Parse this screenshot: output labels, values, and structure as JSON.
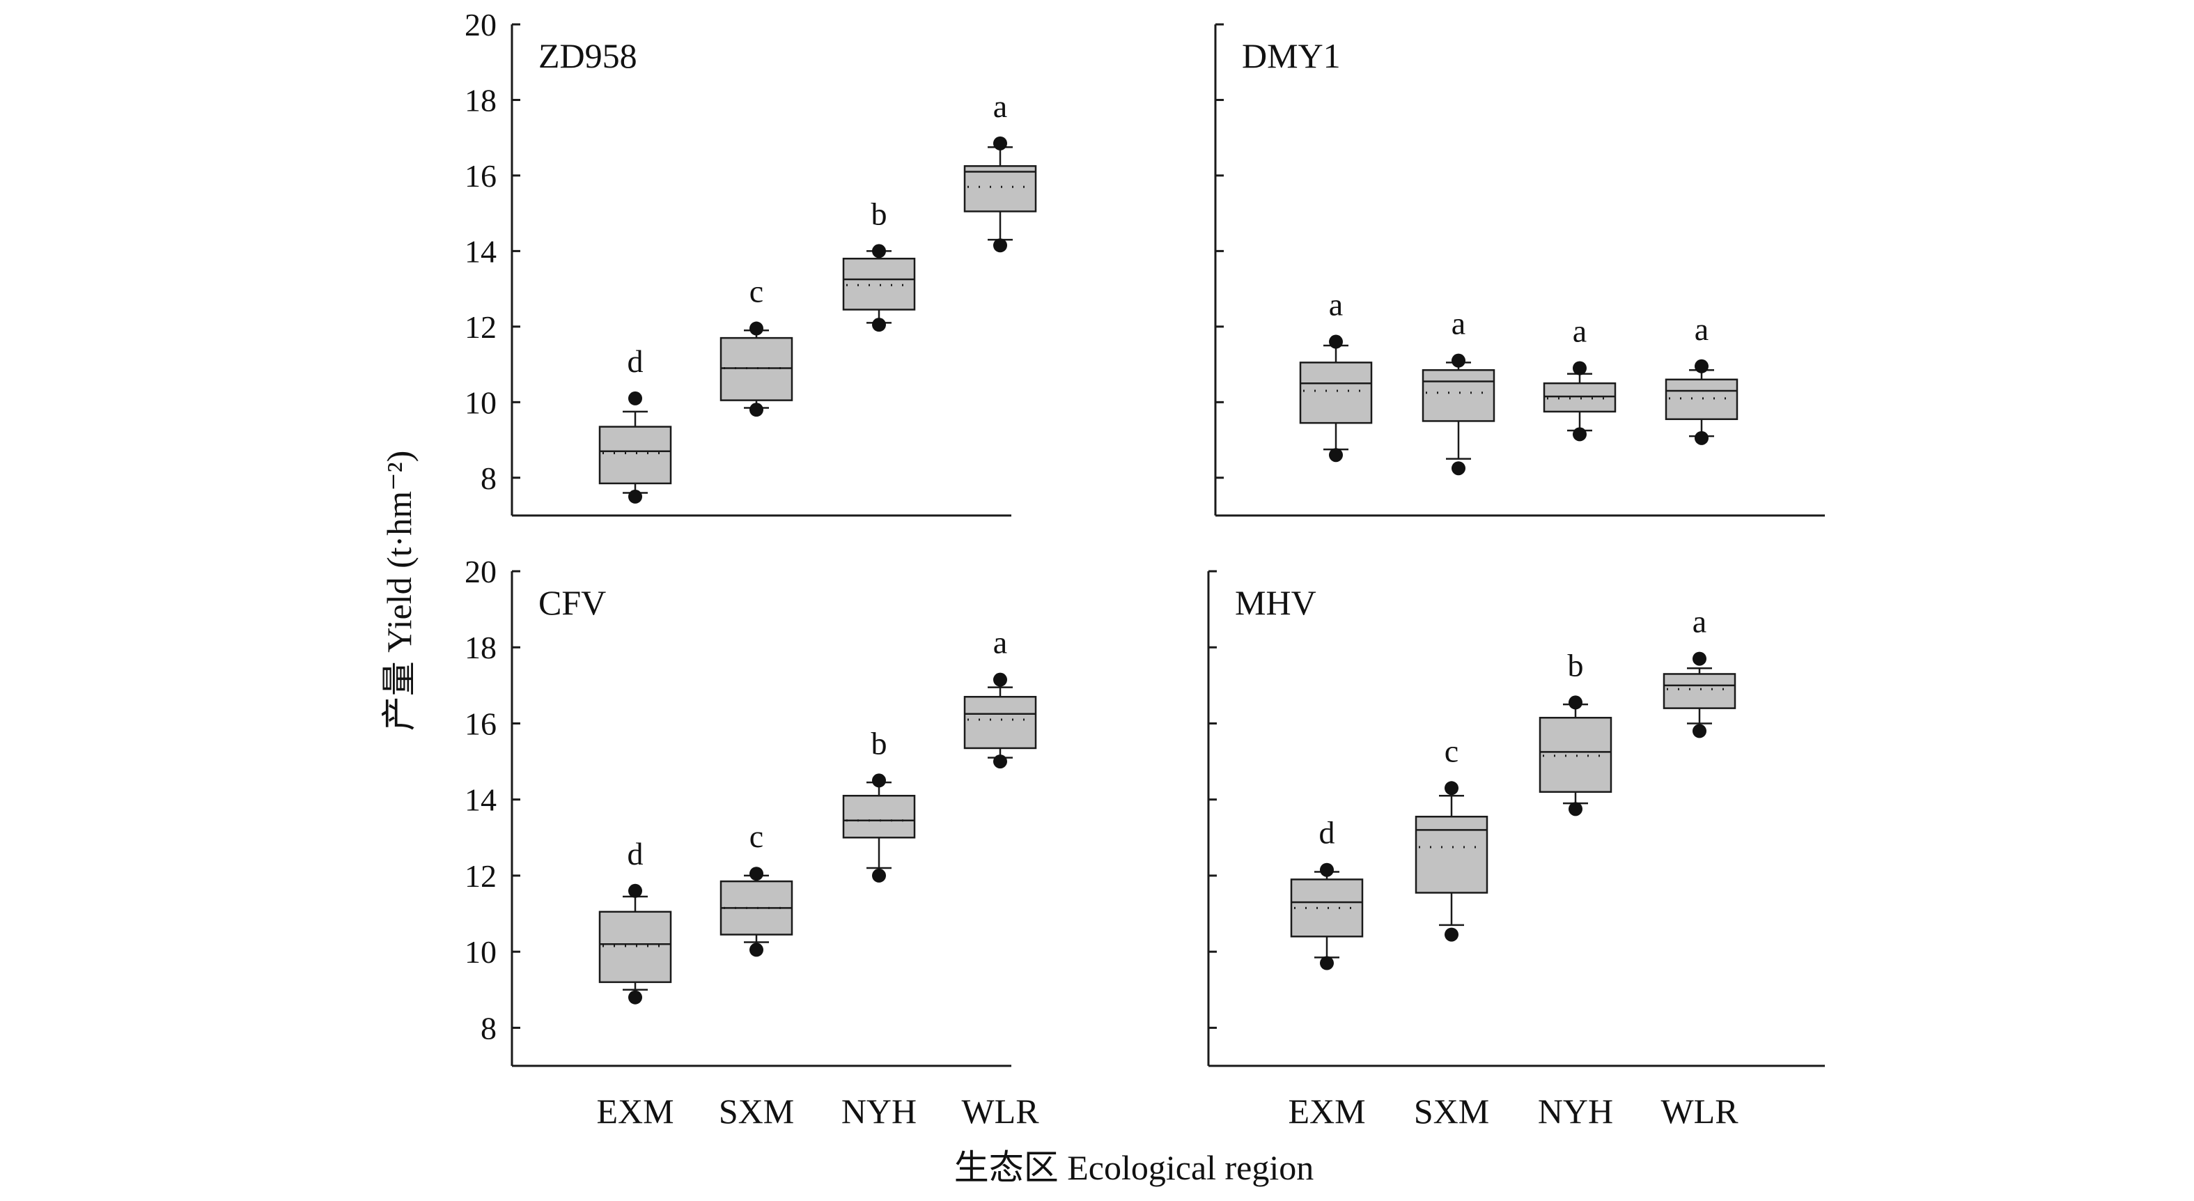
{
  "figure": {
    "ylabel": "产量 Yield (t·hm⁻²)",
    "xlabel": "生态区 Ecological region",
    "categories": [
      "EXM",
      "SXM",
      "NYH",
      "WLR"
    ],
    "yticks": [
      8,
      10,
      12,
      14,
      16,
      18,
      20
    ]
  },
  "colors": {
    "box_fill": "#c2c2c2",
    "stroke": "#1a1a1a",
    "point": "#111111"
  },
  "chart_data": [
    {
      "type": "box",
      "panel": "ZD958",
      "ylim": [
        7,
        20
      ],
      "categories": [
        "EXM",
        "SXM",
        "NYH",
        "WLR"
      ],
      "boxes": [
        {
          "category": "EXM",
          "q1": 7.85,
          "median": 8.7,
          "q3": 9.35,
          "mean": 8.65,
          "whisker_low": 7.6,
          "whisker_high": 9.75,
          "outliers": [
            7.5,
            10.1
          ],
          "letter": "d"
        },
        {
          "category": "SXM",
          "q1": 10.05,
          "median": 10.9,
          "q3": 11.7,
          "mean": 10.9,
          "whisker_low": 9.85,
          "whisker_high": 11.9,
          "outliers": [
            9.8,
            11.95
          ],
          "letter": "c"
        },
        {
          "category": "NYH",
          "q1": 12.45,
          "median": 13.25,
          "q3": 13.8,
          "mean": 13.1,
          "whisker_low": 12.1,
          "whisker_high": 14.0,
          "outliers": [
            12.05,
            14.0
          ],
          "letter": "b"
        },
        {
          "category": "WLR",
          "q1": 15.05,
          "median": 16.1,
          "q3": 16.25,
          "mean": 15.7,
          "whisker_low": 14.3,
          "whisker_high": 16.75,
          "outliers": [
            14.15,
            16.85
          ],
          "letter": "a"
        }
      ]
    },
    {
      "type": "box",
      "panel": "DMY1",
      "ylim": [
        7,
        20
      ],
      "categories": [
        "EXM",
        "SXM",
        "NYH",
        "WLR"
      ],
      "boxes": [
        {
          "category": "EXM",
          "q1": 9.45,
          "median": 10.5,
          "q3": 11.05,
          "mean": 10.3,
          "whisker_low": 8.75,
          "whisker_high": 11.5,
          "outliers": [
            8.6,
            11.6
          ],
          "letter": "a"
        },
        {
          "category": "SXM",
          "q1": 9.5,
          "median": 10.55,
          "q3": 10.85,
          "mean": 10.25,
          "whisker_low": 8.5,
          "whisker_high": 11.05,
          "outliers": [
            8.25,
            11.1
          ],
          "letter": "a"
        },
        {
          "category": "NYH",
          "q1": 9.75,
          "median": 10.15,
          "q3": 10.5,
          "mean": 10.1,
          "whisker_low": 9.25,
          "whisker_high": 10.75,
          "outliers": [
            9.15,
            10.9
          ],
          "letter": "a"
        },
        {
          "category": "WLR",
          "q1": 9.55,
          "median": 10.3,
          "q3": 10.6,
          "mean": 10.1,
          "whisker_low": 9.1,
          "whisker_high": 10.85,
          "outliers": [
            9.05,
            10.95
          ],
          "letter": "a"
        }
      ]
    },
    {
      "type": "box",
      "panel": "CFV",
      "ylim": [
        7,
        20
      ],
      "categories": [
        "EXM",
        "SXM",
        "NYH",
        "WLR"
      ],
      "boxes": [
        {
          "category": "EXM",
          "q1": 9.2,
          "median": 10.2,
          "q3": 11.05,
          "mean": 10.15,
          "whisker_low": 9.0,
          "whisker_high": 11.45,
          "outliers": [
            8.8,
            11.6
          ],
          "letter": "d"
        },
        {
          "category": "SXM",
          "q1": 10.45,
          "median": 11.15,
          "q3": 11.85,
          "mean": 11.15,
          "whisker_low": 10.25,
          "whisker_high": 12.0,
          "outliers": [
            10.05,
            12.05
          ],
          "letter": "c"
        },
        {
          "category": "NYH",
          "q1": 13.0,
          "median": 13.45,
          "q3": 14.1,
          "mean": 13.45,
          "whisker_low": 12.2,
          "whisker_high": 14.45,
          "outliers": [
            12.0,
            14.5
          ],
          "letter": "b"
        },
        {
          "category": "WLR",
          "q1": 15.35,
          "median": 16.25,
          "q3": 16.7,
          "mean": 16.1,
          "whisker_low": 15.1,
          "whisker_high": 16.95,
          "outliers": [
            15.0,
            17.15
          ],
          "letter": "a"
        }
      ]
    },
    {
      "type": "box",
      "panel": "MHV",
      "ylim": [
        7,
        20
      ],
      "categories": [
        "EXM",
        "SXM",
        "NYH",
        "WLR"
      ],
      "boxes": [
        {
          "category": "EXM",
          "q1": 10.4,
          "median": 11.3,
          "q3": 11.9,
          "mean": 11.15,
          "whisker_low": 9.85,
          "whisker_high": 12.1,
          "outliers": [
            9.7,
            12.15
          ],
          "letter": "d"
        },
        {
          "category": "SXM",
          "q1": 11.55,
          "median": 13.2,
          "q3": 13.55,
          "mean": 12.75,
          "whisker_low": 10.7,
          "whisker_high": 14.1,
          "outliers": [
            10.45,
            14.3
          ],
          "letter": "c"
        },
        {
          "category": "NYH",
          "q1": 14.2,
          "median": 15.25,
          "q3": 16.15,
          "mean": 15.15,
          "whisker_low": 13.9,
          "whisker_high": 16.5,
          "outliers": [
            13.75,
            16.55
          ],
          "letter": "b"
        },
        {
          "category": "WLR",
          "q1": 16.4,
          "median": 17.0,
          "q3": 17.3,
          "mean": 16.9,
          "whisker_low": 16.0,
          "whisker_high": 17.45,
          "outliers": [
            15.8,
            17.7
          ],
          "letter": "a"
        }
      ]
    }
  ]
}
